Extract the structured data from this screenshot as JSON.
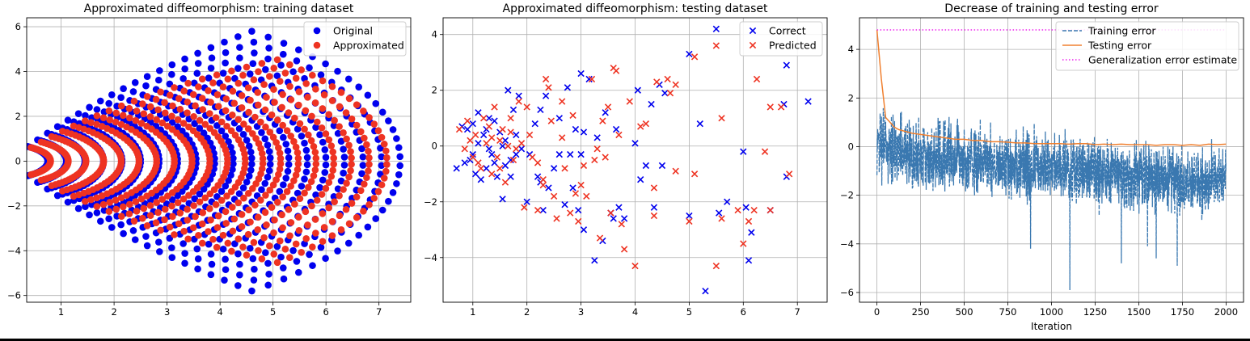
{
  "chart_data": [
    {
      "type": "scatter",
      "title": "Approximated diffeomorphism: training dataset",
      "xlabel": "",
      "ylabel": "",
      "xlim": [
        0.35,
        7.6
      ],
      "ylim": [
        -6.3,
        6.4
      ],
      "xticks": [
        1,
        2,
        3,
        4,
        5,
        6,
        7
      ],
      "yticks": [
        -6,
        -4,
        -2,
        0,
        2,
        4,
        6
      ],
      "grid": true,
      "legend": "top-right",
      "series": [
        {
          "name": "Original",
          "color": "#0000ee",
          "marker": "circle",
          "generator": "fan",
          "rings": 20,
          "r_min": 0.75,
          "r_max": 7.4,
          "spread_min": 1.05,
          "spread_max": 0.9,
          "points_per_ring": 34,
          "y_scale": 1.0
        },
        {
          "name": "Approximated",
          "color": "#ee3322",
          "marker": "circle",
          "generator": "fan",
          "rings": 20,
          "r_min": 0.8,
          "r_max": 7.15,
          "spread_min": 1.0,
          "spread_max": 0.78,
          "points_per_ring": 34,
          "y_scale": 0.9
        }
      ]
    },
    {
      "type": "scatter",
      "title": "Approximated diffeomorphism: testing dataset",
      "xlabel": "",
      "ylabel": "",
      "xlim": [
        0.45,
        7.55
      ],
      "ylim": [
        -5.6,
        4.6
      ],
      "xticks": [
        1,
        2,
        3,
        4,
        5,
        6,
        7
      ],
      "yticks": [
        -4,
        -2,
        0,
        2,
        4
      ],
      "grid": true,
      "legend": "top-right",
      "series": [
        {
          "name": "Correct",
          "color": "#0000ee",
          "marker": "x",
          "points": [
            [
              0.7,
              -0.8
            ],
            [
              0.8,
              0.7
            ],
            [
              0.9,
              0.6
            ],
            [
              0.95,
              -0.5
            ],
            [
              1.0,
              0.8
            ],
            [
              1.05,
              -1.0
            ],
            [
              1.1,
              1.2
            ],
            [
              1.15,
              -1.2
            ],
            [
              1.2,
              0.4
            ],
            [
              1.25,
              -0.8
            ],
            [
              1.3,
              1.0
            ],
            [
              1.35,
              -0.3
            ],
            [
              1.4,
              0.9
            ],
            [
              1.45,
              -1.1
            ],
            [
              1.5,
              0.5
            ],
            [
              1.55,
              -1.9
            ],
            [
              1.6,
              0.2
            ],
            [
              1.65,
              2.0
            ],
            [
              1.7,
              -1.1
            ],
            [
              1.75,
              1.3
            ],
            [
              1.8,
              -0.3
            ],
            [
              1.85,
              1.8
            ],
            [
              1.9,
              -0.1
            ],
            [
              2.0,
              -2.0
            ],
            [
              2.15,
              0.8
            ],
            [
              2.2,
              -1.1
            ],
            [
              2.25,
              1.3
            ],
            [
              2.3,
              -2.3
            ],
            [
              2.35,
              1.8
            ],
            [
              2.4,
              -1.5
            ],
            [
              2.5,
              -0.8
            ],
            [
              2.6,
              -0.3
            ],
            [
              2.7,
              -2.1
            ],
            [
              2.75,
              2.1
            ],
            [
              2.8,
              -0.3
            ],
            [
              2.85,
              -1.5
            ],
            [
              2.9,
              0.6
            ],
            [
              2.95,
              -2.3
            ],
            [
              3.0,
              2.6
            ],
            [
              3.0,
              -0.3
            ],
            [
              3.05,
              -3.0
            ],
            [
              3.15,
              2.4
            ],
            [
              3.25,
              -4.1
            ],
            [
              3.3,
              0.3
            ],
            [
              3.4,
              -3.4
            ],
            [
              3.45,
              1.2
            ],
            [
              3.55,
              -2.4
            ],
            [
              3.65,
              0.6
            ],
            [
              3.7,
              -2.2
            ],
            [
              3.8,
              -2.6
            ],
            [
              4.05,
              2.0
            ],
            [
              4.1,
              -1.2
            ],
            [
              4.2,
              -0.7
            ],
            [
              4.3,
              1.5
            ],
            [
              4.35,
              -2.2
            ],
            [
              4.45,
              2.2
            ],
            [
              4.5,
              -0.7
            ],
            [
              4.55,
              1.9
            ],
            [
              5.0,
              3.3
            ],
            [
              5.0,
              -2.5
            ],
            [
              5.2,
              0.8
            ],
            [
              5.3,
              -5.2
            ],
            [
              5.5,
              4.2
            ],
            [
              5.55,
              -2.4
            ],
            [
              5.7,
              -2.0
            ],
            [
              6.0,
              -0.2
            ],
            [
              6.05,
              -2.2
            ],
            [
              6.1,
              -4.1
            ],
            [
              6.15,
              -3.1
            ],
            [
              6.5,
              -2.3
            ],
            [
              6.75,
              1.5
            ],
            [
              6.8,
              2.9
            ],
            [
              6.8,
              -1.1
            ],
            [
              7.2,
              1.6
            ],
            [
              0.85,
              -0.6
            ],
            [
              1.1,
              0.1
            ],
            [
              1.25,
              0.6
            ],
            [
              1.4,
              -0.6
            ],
            [
              1.55,
              0.0
            ],
            [
              1.7,
              -0.5
            ],
            [
              2.05,
              -0.3
            ],
            [
              2.25,
              -1.3
            ],
            [
              2.6,
              1.0
            ],
            [
              3.05,
              0.5
            ],
            [
              3.6,
              -2.6
            ],
            [
              4.0,
              0.1
            ],
            [
              1.0,
              -0.3
            ],
            [
              1.3,
              -0.1
            ],
            [
              1.6,
              -0.7
            ],
            [
              1.8,
              0.4
            ]
          ]
        },
        {
          "name": "Predicted",
          "color": "#ee3322",
          "marker": "x",
          "points": [
            [
              0.75,
              0.6
            ],
            [
              0.85,
              -0.1
            ],
            [
              0.9,
              0.9
            ],
            [
              1.0,
              -0.4
            ],
            [
              1.05,
              0.4
            ],
            [
              1.15,
              -0.8
            ],
            [
              1.2,
              1.0
            ],
            [
              1.3,
              0.7
            ],
            [
              1.35,
              -1.0
            ],
            [
              1.4,
              1.4
            ],
            [
              1.45,
              -0.4
            ],
            [
              1.5,
              0.2
            ],
            [
              1.6,
              -1.3
            ],
            [
              1.65,
              0.0
            ],
            [
              1.7,
              1.0
            ],
            [
              1.75,
              -0.5
            ],
            [
              1.85,
              1.6
            ],
            [
              1.9,
              0.1
            ],
            [
              1.95,
              -2.2
            ],
            [
              2.0,
              1.4
            ],
            [
              2.1,
              -0.4
            ],
            [
              2.2,
              -2.3
            ],
            [
              2.3,
              -1.2
            ],
            [
              2.35,
              2.4
            ],
            [
              2.4,
              2.1
            ],
            [
              2.45,
              0.9
            ],
            [
              2.55,
              -2.6
            ],
            [
              2.65,
              1.6
            ],
            [
              2.7,
              -0.8
            ],
            [
              2.8,
              -2.4
            ],
            [
              2.85,
              1.1
            ],
            [
              2.9,
              -1.7
            ],
            [
              2.95,
              -2.7
            ],
            [
              3.05,
              -0.7
            ],
            [
              3.1,
              -1.8
            ],
            [
              3.2,
              2.4
            ],
            [
              3.25,
              -0.5
            ],
            [
              3.35,
              -3.3
            ],
            [
              3.4,
              0.9
            ],
            [
              3.45,
              -0.4
            ],
            [
              3.55,
              -2.4
            ],
            [
              3.6,
              2.8
            ],
            [
              3.65,
              2.7
            ],
            [
              3.7,
              0.4
            ],
            [
              3.75,
              -2.8
            ],
            [
              3.8,
              -3.7
            ],
            [
              3.9,
              1.6
            ],
            [
              4.0,
              -4.3
            ],
            [
              4.2,
              0.8
            ],
            [
              4.35,
              -1.5
            ],
            [
              4.35,
              -2.5
            ],
            [
              4.4,
              2.3
            ],
            [
              4.6,
              2.4
            ],
            [
              4.65,
              1.9
            ],
            [
              4.75,
              2.2
            ],
            [
              4.75,
              -0.9
            ],
            [
              5.0,
              -2.7
            ],
            [
              5.1,
              3.2
            ],
            [
              5.1,
              -1.0
            ],
            [
              5.5,
              3.6
            ],
            [
              5.5,
              -4.3
            ],
            [
              5.6,
              -2.6
            ],
            [
              5.6,
              1.0
            ],
            [
              5.9,
              -2.3
            ],
            [
              6.0,
              -3.5
            ],
            [
              6.1,
              -2.7
            ],
            [
              6.2,
              -2.3
            ],
            [
              6.25,
              2.4
            ],
            [
              6.4,
              -0.2
            ],
            [
              6.5,
              1.4
            ],
            [
              6.5,
              -2.3
            ],
            [
              6.7,
              1.4
            ],
            [
              6.85,
              -1.0
            ],
            [
              0.95,
              0.2
            ],
            [
              1.1,
              -0.6
            ],
            [
              1.25,
              0.1
            ],
            [
              1.55,
              0.6
            ],
            [
              1.8,
              -0.1
            ],
            [
              2.05,
              0.4
            ],
            [
              2.3,
              -1.4
            ],
            [
              2.65,
              0.3
            ],
            [
              3.0,
              -1.4
            ],
            [
              3.3,
              -0.1
            ],
            [
              3.5,
              1.4
            ],
            [
              4.1,
              0.7
            ],
            [
              1.35,
              0.3
            ],
            [
              1.5,
              -0.8
            ],
            [
              1.7,
              0.5
            ],
            [
              2.2,
              -0.6
            ],
            [
              2.5,
              -1.8
            ]
          ]
        }
      ]
    },
    {
      "type": "line",
      "title": "Decrease of training and testing error",
      "xlabel": "Iteration",
      "ylabel": "",
      "xlim": [
        -100,
        2100
      ],
      "ylim": [
        -6.4,
        5.3
      ],
      "xticks": [
        0,
        250,
        500,
        750,
        1000,
        1250,
        1500,
        1750,
        2000
      ],
      "yticks": [
        -6,
        -4,
        -2,
        0,
        2,
        4
      ],
      "grid": true,
      "legend": "top-right",
      "series": [
        {
          "name": "Training error",
          "color": "#3a78b0",
          "style": "dashed",
          "generator": "noisy",
          "count": 2000,
          "mean_start": 0.2,
          "mean_end": -1.5,
          "noise": 0.65,
          "spikes": [
            [
              880,
              -4.2
            ],
            [
              1105,
              -5.9
            ],
            [
              1400,
              -4.8
            ],
            [
              1600,
              -4.6
            ],
            [
              1720,
              -4.9
            ],
            [
              1550,
              -4.1
            ]
          ]
        },
        {
          "name": "Testing error",
          "color": "#f08030",
          "style": "solid",
          "x": [
            0,
            25,
            50,
            75,
            100,
            125,
            150,
            175,
            200,
            250,
            300,
            350,
            400,
            450,
            500,
            550,
            600,
            650,
            700,
            750,
            800,
            850,
            900,
            950,
            1000,
            1050,
            1100,
            1150,
            1200,
            1250,
            1300,
            1350,
            1400,
            1450,
            1500,
            1550,
            1600,
            1650,
            1700,
            1750,
            1800,
            1850,
            1900,
            1950,
            2000
          ],
          "values": [
            4.8,
            2.8,
            1.2,
            1.0,
            0.8,
            0.7,
            0.65,
            0.6,
            0.55,
            0.5,
            0.45,
            0.4,
            0.35,
            0.3,
            0.3,
            0.25,
            0.25,
            0.2,
            0.2,
            0.18,
            0.15,
            0.15,
            0.12,
            0.12,
            0.12,
            0.12,
            0.1,
            0.12,
            0.12,
            0.08,
            0.1,
            0.08,
            0.1,
            0.08,
            0.08,
            0.08,
            0.05,
            0.08,
            0.08,
            0.05,
            0.08,
            0.05,
            0.1,
            0.08,
            0.1
          ]
        },
        {
          "name": "Generalization error estimate",
          "color": "#ee22ee",
          "style": "dotted",
          "x": [
            0,
            2000
          ],
          "values": [
            4.8,
            4.8
          ]
        }
      ]
    }
  ]
}
